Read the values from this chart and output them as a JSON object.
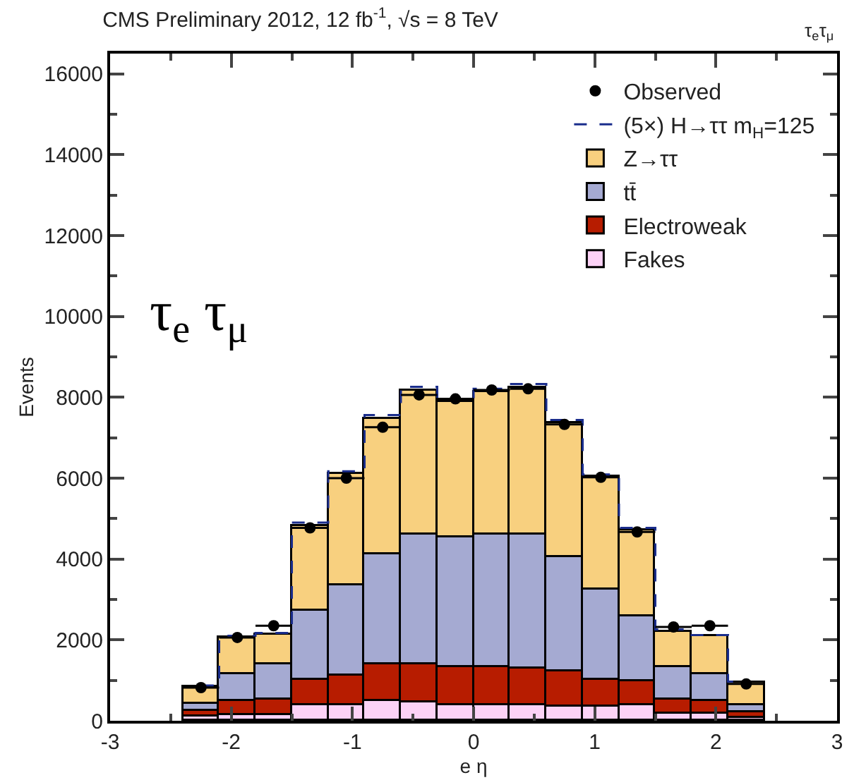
{
  "chart_data": {
    "type": "bar",
    "title": "CMS Preliminary 2012, 12 fb$^{-1}$, √s = 8 TeV",
    "subtitle": "τ$_{e}$τ$_{μ}$",
    "xlabel": "e η",
    "ylabel": "Events",
    "annotations": [
      "τ$_{e}$ τ$_{μ}$"
    ],
    "x": [
      -2.25,
      -1.95,
      -1.65,
      -1.35,
      -1.05,
      -0.75,
      -0.45,
      -0.15,
      0.15,
      0.45,
      0.75,
      1.05,
      1.35,
      1.65,
      1.95,
      2.25
    ],
    "stacked": true,
    "series": [
      {
        "name": "Fakes",
        "color": "#fcd2f6",
        "values": [
          120,
          150,
          150,
          370,
          370,
          490,
          470,
          400,
          390,
          390,
          350,
          350,
          390,
          180,
          180,
          60
        ]
      },
      {
        "name": "Electroweak",
        "color": "#b71c00",
        "values": [
          110,
          350,
          370,
          630,
          730,
          890,
          930,
          920,
          940,
          900,
          860,
          670,
          570,
          350,
          310,
          140
        ]
      },
      {
        "name": "tt̄",
        "color": "#a5aad2",
        "values": [
          200,
          660,
          860,
          1720,
          2260,
          2740,
          3190,
          3210,
          3290,
          3330,
          2850,
          2220,
          1630,
          790,
          650,
          190
        ]
      },
      {
        "name": "Z→ττ",
        "color": "#f8d07f",
        "values": [
          390,
          890,
          740,
          2110,
          2730,
          3350,
          3580,
          3340,
          3500,
          3620,
          3290,
          2780,
          2120,
          890,
          940,
          550
        ]
      },
      {
        "name": "(5×) H→ττ m$_{H}$=125",
        "type": "step",
        "color": "#1a2d8c",
        "line_style": "dashed",
        "values": [
          870,
          2100,
          2170,
          4900,
          6170,
          7560,
          8260,
          7960,
          8210,
          8330,
          7440,
          6090,
          4770,
          2260,
          2120,
          970
        ]
      },
      {
        "name": "Observed",
        "type": "scatter",
        "color": "#000000",
        "marker": "circle",
        "x": [
          -2.25,
          -1.95,
          -1.65,
          -1.35,
          -1.05,
          -0.75,
          -0.45,
          -0.15,
          0.15,
          0.45,
          0.75,
          1.05,
          1.35,
          1.65,
          1.95,
          2.25
        ],
        "values": [
          820,
          2060,
          2350,
          4770,
          6000,
          7260,
          8060,
          7960,
          8180,
          8210,
          7330,
          6020,
          4670,
          2320,
          2350,
          910
        ],
        "xerrors": [
          0.15,
          0.15,
          0.15,
          0.15,
          0.15,
          0.15,
          0.15,
          0.15,
          0.15,
          0.15,
          0.15,
          0.15,
          0.15,
          0.15,
          0.15,
          0.15
        ]
      }
    ],
    "xlim": [
      -3,
      3
    ],
    "xticks": [
      -3,
      -2,
      -1,
      0,
      1,
      2,
      3
    ],
    "ylim": [
      0,
      16500
    ],
    "yticks": [
      0,
      2000,
      4000,
      6000,
      8000,
      10000,
      12000,
      14000,
      16000
    ],
    "legend": "top right"
  }
}
